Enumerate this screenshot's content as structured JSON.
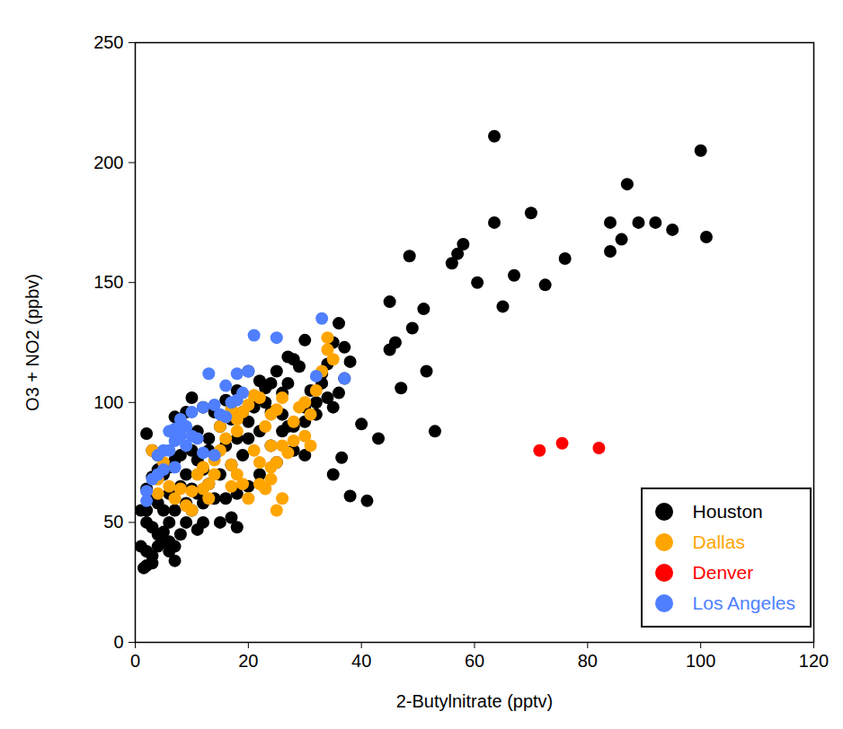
{
  "chart_data": {
    "type": "scatter",
    "x_label": "2-Butylnitrate (pptv)",
    "y_label": "O3 + NO2 (ppbv)",
    "xlim": [
      0,
      120
    ],
    "xticks": [
      0,
      20,
      40,
      60,
      80,
      100,
      120
    ],
    "ylim": [
      0,
      250
    ],
    "yticks": [
      0,
      50,
      100,
      150,
      200,
      250
    ],
    "grid": false,
    "legend": "bottom-right",
    "marker": "circle",
    "series": [
      {
        "name": "Houston",
        "color": "#000000",
        "x": [
          63.5,
          100,
          87,
          70,
          63.5,
          84,
          89,
          92,
          95,
          101,
          86,
          58,
          57,
          84,
          48.5,
          76,
          56,
          67,
          60.5,
          72.5,
          65,
          45,
          51,
          49,
          46,
          45,
          47,
          51.5,
          53,
          43,
          40,
          35,
          38,
          41,
          36.5,
          36,
          35,
          37,
          33,
          30,
          34,
          38,
          36,
          35,
          28,
          27,
          29,
          25,
          24,
          22,
          20,
          18,
          16,
          14,
          12,
          10,
          9,
          8,
          7,
          26,
          31,
          32,
          30,
          26,
          24,
          22,
          23,
          21,
          19,
          17,
          15,
          13,
          11,
          10,
          8,
          7,
          6,
          5,
          4,
          3,
          2,
          3,
          4,
          2,
          3,
          2,
          1,
          2,
          3,
          4,
          5,
          6,
          1,
          2,
          2,
          3,
          1.5,
          3,
          4,
          5,
          6,
          7,
          8,
          9,
          10,
          12,
          14,
          16,
          18,
          20,
          22,
          25,
          28,
          30,
          26,
          27,
          15,
          17,
          18,
          12,
          11,
          7,
          6,
          9,
          11,
          13,
          15,
          17,
          19,
          8,
          6,
          9,
          14,
          16,
          20,
          24,
          28,
          30,
          32,
          34,
          4,
          5,
          7,
          10,
          12,
          11,
          13,
          20,
          18,
          23,
          27,
          33,
          37
        ],
        "values": [
          211,
          205,
          191,
          179,
          175,
          175,
          175,
          175,
          172,
          169,
          168,
          166,
          162,
          163,
          161,
          160,
          158,
          153,
          150,
          149,
          140,
          142,
          139,
          131,
          125,
          122,
          106,
          113,
          88,
          85,
          91,
          70,
          61,
          59,
          77,
          133,
          125,
          123,
          112,
          126,
          116,
          117,
          104,
          98,
          118,
          119,
          115,
          113,
          108,
          109,
          113,
          105,
          101,
          96,
          98,
          102,
          96,
          92,
          94,
          104,
          105,
          100,
          98,
          95,
          96,
          88,
          100,
          98,
          96,
          93,
          90,
          85,
          88,
          80,
          78,
          76,
          73,
          70,
          72,
          69,
          87,
          80,
          78,
          64,
          60,
          55,
          55,
          50,
          48,
          45,
          46,
          50,
          40,
          38,
          32,
          33,
          31,
          36,
          40,
          42,
          38,
          40,
          45,
          50,
          55,
          58,
          60,
          60,
          62,
          65,
          70,
          75,
          80,
          78,
          88,
          90,
          50,
          52,
          48,
          50,
          47,
          34,
          42,
          58,
          62,
          66,
          70,
          74,
          78,
          65,
          62,
          70,
          78,
          82,
          85,
          82,
          90,
          92,
          95,
          102,
          58,
          55,
          55,
          64,
          72,
          76,
          80,
          92,
          85,
          106,
          108,
          108,
          110
        ]
      },
      {
        "name": "Dallas",
        "color": "#FFA500",
        "x": [
          34,
          34,
          35,
          33,
          32,
          30,
          31,
          28,
          29,
          26,
          25,
          24,
          23,
          22,
          21,
          20,
          19,
          18,
          18,
          17,
          16,
          16,
          15,
          15,
          14,
          14,
          13,
          13,
          12,
          12,
          11,
          10,
          10,
          9,
          8,
          7,
          6,
          5,
          4,
          3,
          4,
          17,
          17,
          18,
          19,
          20,
          21,
          22,
          23,
          24,
          24,
          25,
          26,
          27,
          28,
          30,
          31,
          26,
          22,
          25,
          24
        ],
        "values": [
          127,
          122,
          118,
          113,
          105,
          100,
          95,
          92,
          98,
          102,
          97,
          95,
          90,
          102,
          103,
          99,
          96,
          93,
          88,
          97,
          94,
          85,
          90,
          80,
          76,
          70,
          66,
          60,
          73,
          64,
          70,
          63,
          55,
          57,
          64,
          60,
          65,
          75,
          68,
          80,
          62,
          65,
          74,
          70,
          66,
          60,
          80,
          75,
          64,
          68,
          73,
          75,
          82,
          79,
          84,
          86,
          82,
          60,
          66,
          55,
          82
        ]
      },
      {
        "name": "Denver",
        "color": "#FF0000",
        "x": [
          71.5,
          75.5,
          82
        ],
        "values": [
          80,
          83,
          81
        ]
      },
      {
        "name": "Los Angeles",
        "color": "#4F7FFF",
        "x": [
          33,
          21,
          25,
          13,
          16,
          18,
          20,
          14,
          12,
          10,
          8,
          9,
          7,
          6,
          8,
          7,
          10,
          9,
          6,
          5,
          4,
          5,
          7,
          4,
          3,
          2,
          2,
          17,
          18,
          19,
          12,
          15,
          16,
          32,
          37,
          14,
          11
        ],
        "values": [
          135,
          128,
          127,
          112,
          107,
          112,
          113,
          99,
          98,
          96,
          93,
          90,
          89,
          88,
          86,
          84,
          86,
          82,
          80,
          80,
          78,
          72,
          73,
          70,
          68,
          63,
          59,
          100,
          101,
          104,
          79,
          95,
          94,
          111,
          110,
          78,
          85
        ]
      }
    ]
  }
}
